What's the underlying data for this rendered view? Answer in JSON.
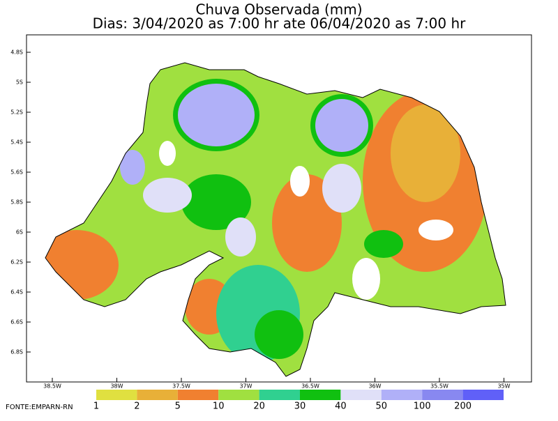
{
  "header": {
    "title": "Chuva Observada (mm)",
    "subtitle": "Dias: 3/04/2020 as 7:00 hr ate 06/04/2020 as 7:00 hr"
  },
  "lat_labels": [
    "4.8S",
    "5S",
    "5.2S",
    "5.4S",
    "5.6S",
    "5.8S",
    "6S",
    "6.2S",
    "6.4S",
    "6.6S",
    "6.8S"
  ],
  "lon_labels": [
    "38.5W",
    "38W",
    "37.5W",
    "37W",
    "36.5W",
    "36W",
    "35.5W",
    "35W"
  ],
  "legend": {
    "labels": [
      1,
      2,
      5,
      10,
      20,
      30,
      40,
      50,
      100,
      200
    ],
    "colors": [
      "#e0e040",
      "#e8b038",
      "#f08030",
      "#a0e040",
      "#30d090",
      "#10c010",
      "#e0e0f8",
      "#b0b0f8",
      "#8888f0",
      "#6060f8"
    ]
  },
  "source": "FONTE:EMPARN-RN"
}
